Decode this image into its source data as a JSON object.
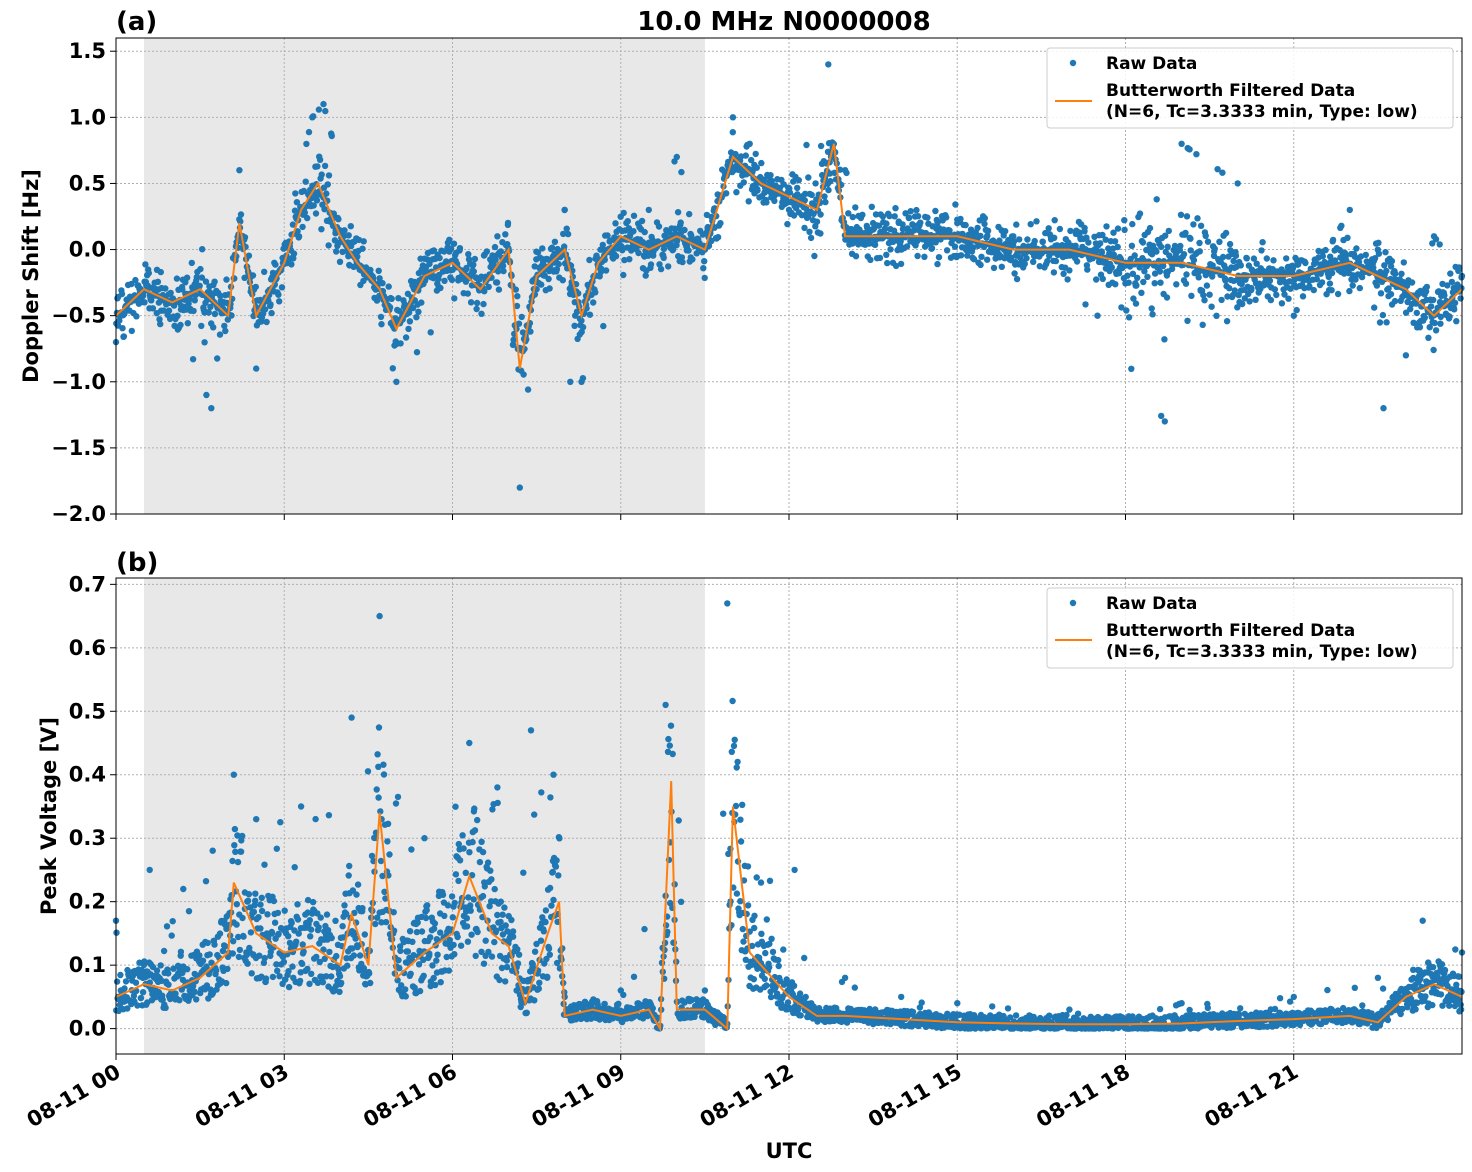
{
  "figure": {
    "title": "10.0 MHz N0000008",
    "xlabel": "UTC",
    "x_ticks": [
      "08-11 00",
      "08-11 03",
      "08-11 06",
      "08-11 09",
      "08-11 12",
      "08-11 15",
      "08-11 18",
      "08-11 21"
    ],
    "legend": {
      "raw_label": "Raw Data",
      "filtered_label_line1": "Butterworth Filtered Data",
      "filtered_label_line2": "(N=6, Tc=3.3333 min, Type: low)"
    },
    "colors": {
      "raw": "#1f77b4",
      "filtered": "#ff7f0e",
      "night_shade": "#e8e8e8"
    }
  },
  "chart_data": [
    {
      "type": "scatter",
      "panel_label": "(a)",
      "ylabel": "Doppler Shift [Hz]",
      "xlim_hours": [
        0,
        24
      ],
      "ylim": [
        -2.0,
        1.6
      ],
      "y_ticks": [
        "1.5",
        "1.0",
        "0.5",
        "0.0",
        "−0.5",
        "−1.0",
        "−1.5",
        "−2.0"
      ],
      "y_tick_values": [
        1.5,
        1.0,
        0.5,
        0.0,
        -0.5,
        -1.0,
        -1.5,
        -2.0
      ],
      "grid": true,
      "legend_position": "top-right",
      "shaded_interval_hours": [
        0.5,
        10.5
      ],
      "series": [
        {
          "name": "Butterworth Filtered Data",
          "x_hours": [
            0,
            0.5,
            1,
            1.5,
            2,
            2.2,
            2.5,
            3,
            3.3,
            3.6,
            4,
            4.3,
            4.7,
            5,
            5.5,
            6,
            6.5,
            7,
            7.2,
            7.5,
            8,
            8.3,
            8.6,
            9,
            9.5,
            10,
            10.5,
            11,
            11.5,
            12,
            12.5,
            12.8,
            13,
            14,
            15,
            16,
            17,
            18,
            19,
            20,
            21,
            22,
            23,
            23.5,
            24
          ],
          "values": [
            -0.5,
            -0.3,
            -0.4,
            -0.3,
            -0.5,
            0.2,
            -0.5,
            -0.1,
            0.3,
            0.5,
            0.1,
            -0.1,
            -0.3,
            -0.6,
            -0.2,
            -0.1,
            -0.3,
            0.0,
            -0.9,
            -0.2,
            0.0,
            -0.5,
            -0.1,
            0.1,
            0.0,
            0.1,
            0.0,
            0.7,
            0.5,
            0.4,
            0.3,
            0.8,
            0.1,
            0.1,
            0.1,
            0.0,
            0.0,
            -0.1,
            -0.1,
            -0.2,
            -0.2,
            -0.1,
            -0.3,
            -0.5,
            -0.3
          ]
        },
        {
          "name": "Raw Data",
          "x_hours": [
            0,
            1,
            1.7,
            2.2,
            2.5,
            3.5,
            3.7,
            4.5,
            5,
            6.8,
            7.2,
            7.5,
            8,
            8.1,
            8.3,
            9.5,
            10,
            10.5,
            11,
            11.3,
            12,
            12.7,
            13,
            13.5,
            14,
            15,
            16,
            17.5,
            18.7,
            19,
            20,
            21,
            22,
            22.6,
            23,
            23.5,
            24
          ],
          "values": [
            -0.7,
            -0.4,
            -1.2,
            0.6,
            -0.9,
            1.0,
            1.1,
            -0.2,
            -1.0,
            0.1,
            -1.8,
            -0.3,
            0.3,
            -1.0,
            -1.0,
            0.3,
            0.7,
            0.0,
            1.0,
            0.8,
            0.3,
            1.4,
            0.6,
            0.2,
            0.0,
            0.2,
            0.1,
            -0.5,
            -1.3,
            0.8,
            0.5,
            -0.5,
            0.3,
            -1.2,
            -0.8,
            0.1,
            -0.2
          ]
        }
      ]
    },
    {
      "type": "scatter",
      "panel_label": "(b)",
      "ylabel": "Peak Voltage [V]",
      "xlim_hours": [
        0,
        24
      ],
      "ylim": [
        -0.04,
        0.71
      ],
      "y_ticks": [
        "0.7",
        "0.6",
        "0.5",
        "0.4",
        "0.3",
        "0.2",
        "0.1",
        "0.0"
      ],
      "y_tick_values": [
        0.7,
        0.6,
        0.5,
        0.4,
        0.3,
        0.2,
        0.1,
        0.0
      ],
      "grid": true,
      "legend_position": "top-right",
      "shaded_interval_hours": [
        0.5,
        10.5
      ],
      "series": [
        {
          "name": "Butterworth Filtered Data",
          "x_hours": [
            0,
            0.5,
            1,
            1.5,
            2,
            2.1,
            2.5,
            3,
            3.5,
            4,
            4.2,
            4.5,
            4.7,
            5,
            5.5,
            6,
            6.3,
            6.7,
            7,
            7.3,
            7.7,
            7.9,
            8,
            8.5,
            9,
            9.5,
            9.7,
            9.9,
            10,
            10.5,
            10.9,
            11,
            11.3,
            11.7,
            12,
            12.5,
            13,
            14,
            15,
            16,
            17,
            18,
            19,
            20,
            21,
            22,
            22.5,
            23,
            23.5,
            24
          ],
          "values": [
            0.05,
            0.07,
            0.06,
            0.08,
            0.12,
            0.23,
            0.15,
            0.12,
            0.13,
            0.1,
            0.18,
            0.1,
            0.34,
            0.08,
            0.12,
            0.15,
            0.24,
            0.15,
            0.13,
            0.04,
            0.15,
            0.2,
            0.02,
            0.03,
            0.02,
            0.03,
            0.0,
            0.39,
            0.03,
            0.03,
            0.0,
            0.35,
            0.12,
            0.08,
            0.05,
            0.02,
            0.02,
            0.015,
            0.01,
            0.008,
            0.007,
            0.007,
            0.008,
            0.012,
            0.015,
            0.02,
            0.01,
            0.05,
            0.07,
            0.05
          ]
        },
        {
          "name": "Raw Data",
          "x_hours": [
            0,
            0.6,
            1.2,
            2.1,
            2.5,
            3.3,
            4.2,
            4.7,
            5.5,
            6.3,
            6.8,
            7.4,
            7.8,
            8,
            9,
            9.8,
            10.5,
            10.9,
            11.5,
            12.1,
            13,
            14,
            15,
            17,
            19,
            21,
            22.5,
            23.3,
            24
          ],
          "values": [
            0.17,
            0.25,
            0.22,
            0.4,
            0.33,
            0.35,
            0.49,
            0.65,
            0.3,
            0.45,
            0.38,
            0.47,
            0.4,
            0.05,
            0.06,
            0.51,
            0.06,
            0.67,
            0.23,
            0.25,
            0.08,
            0.05,
            0.04,
            0.03,
            0.04,
            0.05,
            0.08,
            0.17,
            0.12
          ]
        }
      ]
    }
  ]
}
